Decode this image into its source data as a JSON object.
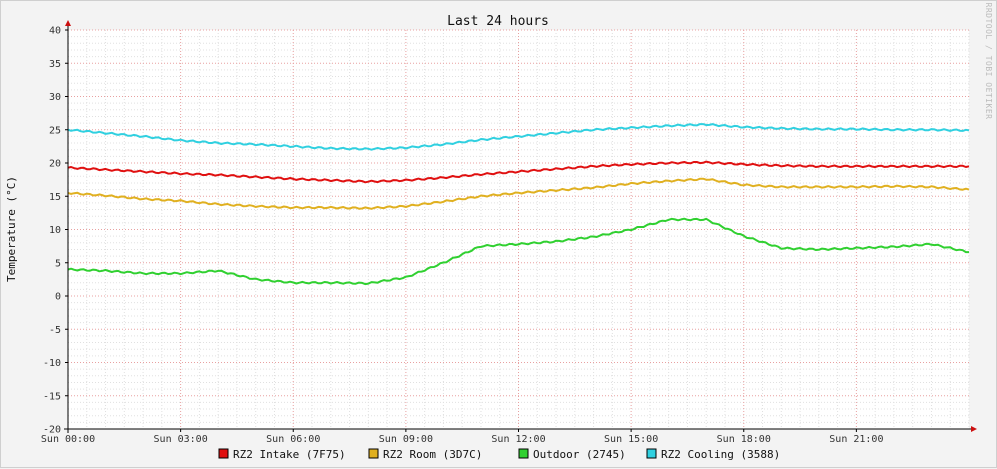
{
  "chart_data": {
    "type": "line",
    "title": "Last 24 hours",
    "ylabel": "Temperature (°C)",
    "xlabel": "",
    "watermark": "RRDTOOL / TOBI OETIKER",
    "ylim": [
      -20,
      40
    ],
    "yticks": [
      40,
      35,
      30,
      25,
      20,
      15,
      10,
      5,
      0,
      -5,
      -10,
      -15,
      -20
    ],
    "ytick_labels": [
      "40",
      "35",
      "30",
      "25",
      "20",
      "15",
      "10",
      "5",
      "0",
      "-5",
      "-10",
      "-15",
      "-20"
    ],
    "xlim": [
      0,
      24
    ],
    "xticks": [
      0,
      3,
      6,
      9,
      12,
      15,
      18,
      21
    ],
    "xtick_labels": [
      "Sun 00:00",
      "Sun 03:00",
      "Sun 06:00",
      "Sun 09:00",
      "Sun 12:00",
      "Sun 15:00",
      "Sun 18:00",
      "Sun 21:00"
    ],
    "grid": true,
    "legend_position": "bottom",
    "x": [
      0,
      1,
      2,
      3,
      4,
      5,
      6,
      7,
      8,
      9,
      10,
      11,
      12,
      13,
      14,
      15,
      16,
      17,
      18,
      19,
      20,
      21,
      22,
      23,
      24
    ],
    "series": [
      {
        "name": "RZ2 Intake (7F75)",
        "color": "#e01010",
        "values": [
          19.3,
          19.0,
          18.7,
          18.4,
          18.2,
          17.9,
          17.6,
          17.4,
          17.2,
          17.4,
          17.8,
          18.3,
          18.7,
          19.1,
          19.5,
          19.8,
          20.0,
          20.1,
          19.8,
          19.6,
          19.5,
          19.5,
          19.5,
          19.5,
          19.5
        ]
      },
      {
        "name": "RZ2 Room (3D7C)",
        "color": "#e0b020",
        "values": [
          15.5,
          15.1,
          14.6,
          14.3,
          13.8,
          13.5,
          13.3,
          13.3,
          13.2,
          13.5,
          14.2,
          15.0,
          15.5,
          15.9,
          16.3,
          16.9,
          17.3,
          17.6,
          16.7,
          16.4,
          16.4,
          16.4,
          16.5,
          16.4,
          16.0
        ]
      },
      {
        "name": "Outdoor (2745)",
        "color": "#30d030",
        "values": [
          4.0,
          3.8,
          3.4,
          3.4,
          3.8,
          2.5,
          2.0,
          2.0,
          1.9,
          2.8,
          5.0,
          7.5,
          7.8,
          8.2,
          8.9,
          10.0,
          11.5,
          11.5,
          9.0,
          7.2,
          7.0,
          7.2,
          7.4,
          7.8,
          6.6
        ]
      },
      {
        "name": "RZ2 Cooling (3588)",
        "color": "#30d0e0",
        "values": [
          25.0,
          24.5,
          24.0,
          23.4,
          23.0,
          22.8,
          22.5,
          22.2,
          22.1,
          22.3,
          22.8,
          23.5,
          24.0,
          24.5,
          25.0,
          25.3,
          25.6,
          25.8,
          25.4,
          25.2,
          25.1,
          25.1,
          25.0,
          25.0,
          24.9
        ]
      }
    ]
  },
  "colors": {
    "background": "#f3f3f3",
    "plot_background": "#ffffff",
    "major_grid": "#e8a0a0",
    "minor_grid": "#e0e0e0",
    "axis": "#cc1010"
  }
}
